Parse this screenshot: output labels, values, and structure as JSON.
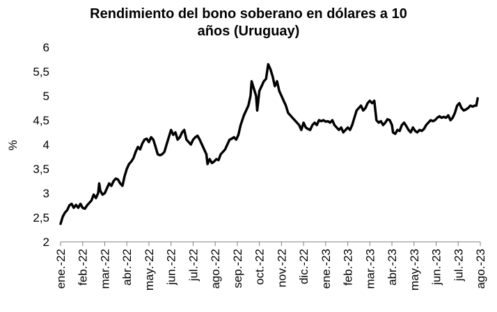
{
  "chart_data": {
    "type": "line",
    "title_lines": [
      "Rendimiento del bono soberano en dólares a 10",
      "años (Uruguay)"
    ],
    "xlabel": "",
    "ylabel": "%",
    "ylim": [
      2,
      6
    ],
    "yticks": [
      "2",
      "2,5",
      "3",
      "3,5",
      "4",
      "4,5",
      "5",
      "5,5",
      "6"
    ],
    "ytick_values": [
      2,
      2.5,
      3,
      3.5,
      4,
      4.5,
      5,
      5.5,
      6
    ],
    "categories": [
      "ene.-22",
      "feb.-22",
      "mar.-22",
      "abr.-22",
      "may.-22",
      "jun.-22",
      "jul.-22",
      "ago.-22",
      "sep.-22",
      "oct.-22",
      "nov.-22",
      "dic.-22",
      "ene.-23",
      "feb.-23",
      "mar.-23",
      "abr.-23",
      "may.-23",
      "jun.-23",
      "jul.-23",
      "ago.-23"
    ],
    "grid": false,
    "line_color": "#000000",
    "series": [
      {
        "name": "",
        "points": [
          [
            0.0,
            2.37
          ],
          [
            0.1,
            2.52
          ],
          [
            0.2,
            2.6
          ],
          [
            0.3,
            2.65
          ],
          [
            0.4,
            2.75
          ],
          [
            0.5,
            2.78
          ],
          [
            0.6,
            2.7
          ],
          [
            0.7,
            2.76
          ],
          [
            0.8,
            2.7
          ],
          [
            0.9,
            2.78
          ],
          [
            1.0,
            2.7
          ],
          [
            1.1,
            2.68
          ],
          [
            1.2,
            2.75
          ],
          [
            1.3,
            2.8
          ],
          [
            1.4,
            2.85
          ],
          [
            1.5,
            2.97
          ],
          [
            1.6,
            2.9
          ],
          [
            1.7,
            3.0
          ],
          [
            1.75,
            3.2
          ],
          [
            1.8,
            3.05
          ],
          [
            1.9,
            2.97
          ],
          [
            2.0,
            3.0
          ],
          [
            2.1,
            3.1
          ],
          [
            2.2,
            3.2
          ],
          [
            2.3,
            3.15
          ],
          [
            2.4,
            3.25
          ],
          [
            2.5,
            3.3
          ],
          [
            2.6,
            3.28
          ],
          [
            2.7,
            3.2
          ],
          [
            2.8,
            3.15
          ],
          [
            2.9,
            3.35
          ],
          [
            3.0,
            3.5
          ],
          [
            3.1,
            3.6
          ],
          [
            3.2,
            3.65
          ],
          [
            3.3,
            3.72
          ],
          [
            3.4,
            3.85
          ],
          [
            3.5,
            3.95
          ],
          [
            3.6,
            3.9
          ],
          [
            3.7,
            4.02
          ],
          [
            3.8,
            4.1
          ],
          [
            3.9,
            4.12
          ],
          [
            4.0,
            4.05
          ],
          [
            4.1,
            4.15
          ],
          [
            4.2,
            4.1
          ],
          [
            4.3,
            3.95
          ],
          [
            4.4,
            3.8
          ],
          [
            4.5,
            3.78
          ],
          [
            4.6,
            3.8
          ],
          [
            4.7,
            3.85
          ],
          [
            4.8,
            4.0
          ],
          [
            4.9,
            4.15
          ],
          [
            5.0,
            4.3
          ],
          [
            5.1,
            4.2
          ],
          [
            5.2,
            4.25
          ],
          [
            5.3,
            4.1
          ],
          [
            5.4,
            4.15
          ],
          [
            5.5,
            4.25
          ],
          [
            5.6,
            4.3
          ],
          [
            5.7,
            4.1
          ],
          [
            5.8,
            4.05
          ],
          [
            5.9,
            4.0
          ],
          [
            6.0,
            4.1
          ],
          [
            6.1,
            4.15
          ],
          [
            6.2,
            4.18
          ],
          [
            6.3,
            4.1
          ],
          [
            6.4,
            4.0
          ],
          [
            6.5,
            3.9
          ],
          [
            6.6,
            3.8
          ],
          [
            6.65,
            3.6
          ],
          [
            6.75,
            3.7
          ],
          [
            6.85,
            3.62
          ],
          [
            6.95,
            3.65
          ],
          [
            7.05,
            3.7
          ],
          [
            7.15,
            3.68
          ],
          [
            7.25,
            3.8
          ],
          [
            7.35,
            3.85
          ],
          [
            7.45,
            3.9
          ],
          [
            7.55,
            4.0
          ],
          [
            7.65,
            4.1
          ],
          [
            7.75,
            4.12
          ],
          [
            7.85,
            4.15
          ],
          [
            7.95,
            4.1
          ],
          [
            8.05,
            4.2
          ],
          [
            8.15,
            4.4
          ],
          [
            8.3,
            4.6
          ],
          [
            8.4,
            4.7
          ],
          [
            8.5,
            4.8
          ],
          [
            8.6,
            5.0
          ],
          [
            8.65,
            5.3
          ],
          [
            8.75,
            5.15
          ],
          [
            8.85,
            5.0
          ],
          [
            8.9,
            4.7
          ],
          [
            9.0,
            5.1
          ],
          [
            9.1,
            5.2
          ],
          [
            9.2,
            5.3
          ],
          [
            9.3,
            5.35
          ],
          [
            9.4,
            5.65
          ],
          [
            9.5,
            5.55
          ],
          [
            9.6,
            5.4
          ],
          [
            9.7,
            5.2
          ],
          [
            9.8,
            5.3
          ],
          [
            9.9,
            5.1
          ],
          [
            10.0,
            5.0
          ],
          [
            10.1,
            4.9
          ],
          [
            10.2,
            4.8
          ],
          [
            10.3,
            4.65
          ],
          [
            10.4,
            4.6
          ],
          [
            10.5,
            4.55
          ],
          [
            10.6,
            4.5
          ],
          [
            10.7,
            4.45
          ],
          [
            10.8,
            4.4
          ],
          [
            10.9,
            4.3
          ],
          [
            11.0,
            4.45
          ],
          [
            11.1,
            4.35
          ],
          [
            11.2,
            4.32
          ],
          [
            11.3,
            4.3
          ],
          [
            11.4,
            4.4
          ],
          [
            11.5,
            4.45
          ],
          [
            11.6,
            4.4
          ],
          [
            11.7,
            4.5
          ],
          [
            11.8,
            4.48
          ],
          [
            11.9,
            4.5
          ],
          [
            12.0,
            4.47
          ],
          [
            12.1,
            4.48
          ],
          [
            12.2,
            4.45
          ],
          [
            12.3,
            4.5
          ],
          [
            12.4,
            4.4
          ],
          [
            12.5,
            4.35
          ],
          [
            12.6,
            4.3
          ],
          [
            12.7,
            4.35
          ],
          [
            12.8,
            4.25
          ],
          [
            12.9,
            4.3
          ],
          [
            13.0,
            4.35
          ],
          [
            13.1,
            4.3
          ],
          [
            13.2,
            4.4
          ],
          [
            13.3,
            4.55
          ],
          [
            13.4,
            4.7
          ],
          [
            13.5,
            4.75
          ],
          [
            13.6,
            4.8
          ],
          [
            13.7,
            4.7
          ],
          [
            13.8,
            4.75
          ],
          [
            13.9,
            4.85
          ],
          [
            14.0,
            4.9
          ],
          [
            14.1,
            4.85
          ],
          [
            14.2,
            4.9
          ],
          [
            14.3,
            4.5
          ],
          [
            14.4,
            4.45
          ],
          [
            14.5,
            4.48
          ],
          [
            14.6,
            4.4
          ],
          [
            14.7,
            4.45
          ],
          [
            14.8,
            4.52
          ],
          [
            14.9,
            4.5
          ],
          [
            15.0,
            4.4
          ],
          [
            15.05,
            4.25
          ],
          [
            15.15,
            4.22
          ],
          [
            15.25,
            4.3
          ],
          [
            15.35,
            4.28
          ],
          [
            15.45,
            4.4
          ],
          [
            15.55,
            4.45
          ],
          [
            15.65,
            4.38
          ],
          [
            15.75,
            4.3
          ],
          [
            15.85,
            4.25
          ],
          [
            15.95,
            4.35
          ],
          [
            16.05,
            4.28
          ],
          [
            16.15,
            4.25
          ],
          [
            16.25,
            4.3
          ],
          [
            16.35,
            4.28
          ],
          [
            16.45,
            4.32
          ],
          [
            16.55,
            4.4
          ],
          [
            16.65,
            4.45
          ],
          [
            16.75,
            4.5
          ],
          [
            16.85,
            4.48
          ],
          [
            16.95,
            4.5
          ],
          [
            17.05,
            4.55
          ],
          [
            17.15,
            4.58
          ],
          [
            17.25,
            4.55
          ],
          [
            17.35,
            4.57
          ],
          [
            17.45,
            4.55
          ],
          [
            17.55,
            4.6
          ],
          [
            17.65,
            4.5
          ],
          [
            17.75,
            4.55
          ],
          [
            17.85,
            4.65
          ],
          [
            17.95,
            4.8
          ],
          [
            18.05,
            4.85
          ],
          [
            18.15,
            4.75
          ],
          [
            18.25,
            4.7
          ],
          [
            18.35,
            4.72
          ],
          [
            18.45,
            4.75
          ],
          [
            18.55,
            4.8
          ],
          [
            18.65,
            4.78
          ],
          [
            18.75,
            4.8
          ],
          [
            18.82,
            4.8
          ],
          [
            18.88,
            4.95
          ]
        ]
      }
    ]
  }
}
